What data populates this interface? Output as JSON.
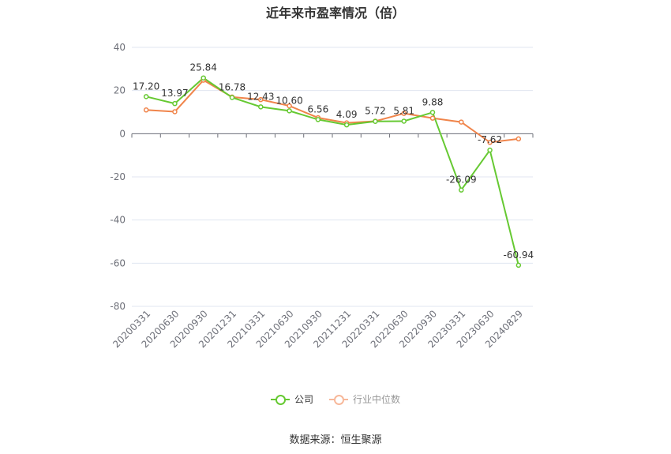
{
  "chart_data": {
    "type": "line",
    "title": "近年来市盈率情况（倍）",
    "categories": [
      "20200331",
      "20200630",
      "20200930",
      "20201231",
      "20210331",
      "20210630",
      "20210930",
      "20211231",
      "20220331",
      "20220630",
      "20220930",
      "20230331",
      "20230630",
      "20240829"
    ],
    "ylim": [
      -80,
      40
    ],
    "yticks": [
      40,
      20,
      0,
      -20,
      -40,
      -60,
      -80
    ],
    "grid": true,
    "legend_position": "bottom",
    "series": [
      {
        "name": "公司",
        "color": "#66c932",
        "values": [
          17.2,
          13.97,
          25.84,
          16.78,
          12.43,
          10.6,
          6.56,
          4.09,
          5.72,
          5.81,
          9.88,
          -26.09,
          -7.62,
          -60.94
        ],
        "labels": [
          "17.20",
          "13.97",
          "25.84",
          "16.78",
          "12.43",
          "10.60",
          "6.56",
          "4.09",
          "5.72",
          "5.81",
          "9.88",
          "-26.09",
          "-7.62",
          "-60.94"
        ]
      },
      {
        "name": "行业中位数",
        "color": "#f0844a",
        "values": [
          11.0,
          10.2,
          24.8,
          17.0,
          15.8,
          12.9,
          7.4,
          5.0,
          5.8,
          9.4,
          7.2,
          5.4,
          -4.0,
          -2.4
        ]
      }
    ]
  },
  "source_text": "数据来源：恒生聚源"
}
